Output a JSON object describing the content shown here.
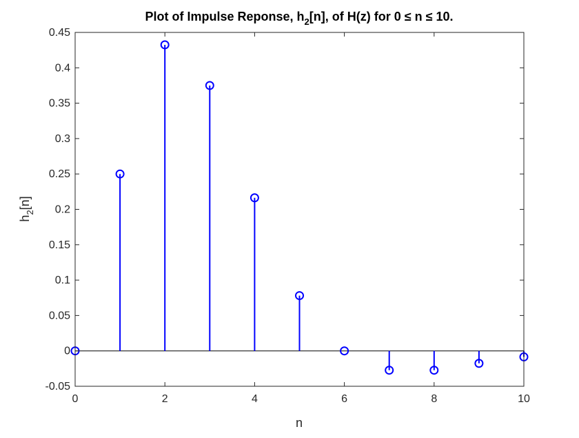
{
  "chart_data": {
    "type": "stem",
    "title": {
      "part1": "Plot of Impulse Reponse, h",
      "sub": "2",
      "part2": "[n], of H(z) for 0 ≤ n ≤ 10."
    },
    "xlabel": "n",
    "ylabel": {
      "base": "h",
      "sub": "2",
      "rest": "[n]"
    },
    "xlim": [
      0,
      10
    ],
    "ylim": [
      -0.05,
      0.45
    ],
    "xticks": [
      0,
      2,
      4,
      6,
      8,
      10
    ],
    "xtick_labels": [
      "0",
      "2",
      "4",
      "6",
      "8",
      "10"
    ],
    "yticks": [
      -0.05,
      0,
      0.05,
      0.1,
      0.15,
      0.2,
      0.25,
      0.3,
      0.35,
      0.4,
      0.45
    ],
    "ytick_labels": [
      "-0.05",
      "0",
      "0.05",
      "0.1",
      "0.15",
      "0.2",
      "0.25",
      "0.3",
      "0.35",
      "0.4",
      "0.45"
    ],
    "grid": false,
    "baseline": 0,
    "marker": "circle",
    "series": [
      {
        "x": [
          0,
          1,
          2,
          3,
          4,
          5,
          6,
          7,
          8,
          9,
          10
        ],
        "y": [
          0,
          0.25,
          0.4325,
          0.375,
          0.2163,
          0.0781,
          0,
          -0.0273,
          -0.0273,
          -0.0176,
          -0.0085
        ]
      }
    ],
    "colors": {
      "series": "#0000ff",
      "axes": "#262626",
      "background": "#ffffff"
    }
  }
}
